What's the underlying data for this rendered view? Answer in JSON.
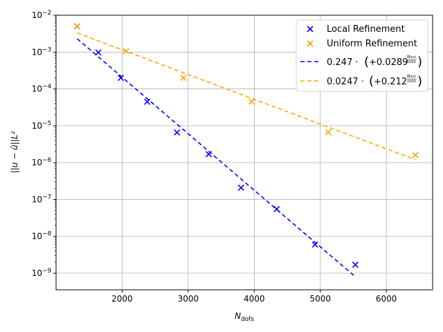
{
  "chart_data": {
    "type": "scatter",
    "title": "",
    "xlabel_main": "N",
    "xlabel_sub": "dofs",
    "ylabel": "||u − ũ||L²",
    "xlim": [
      1000,
      6700
    ],
    "ylim_exp": [
      -9.45,
      -2
    ],
    "yscale": "log",
    "grid": true,
    "legend_position": "top-right",
    "x_ticks": [
      2000,
      3000,
      4000,
      5000,
      6000
    ],
    "y_ticks": [
      {
        "exp": -2,
        "base": "10",
        "sup": "−2"
      },
      {
        "exp": -3,
        "base": "10",
        "sup": "−3"
      },
      {
        "exp": -4,
        "base": "10",
        "sup": "−4"
      },
      {
        "exp": -5,
        "base": "10",
        "sup": "−5"
      },
      {
        "exp": -6,
        "base": "10",
        "sup": "−6"
      },
      {
        "exp": -7,
        "base": "10",
        "sup": "−7"
      },
      {
        "exp": -8,
        "base": "10",
        "sup": "−8"
      },
      {
        "exp": -9,
        "base": "10",
        "sup": "−9"
      }
    ],
    "series": [
      {
        "name": "Local Refinement",
        "kind": "scatter",
        "marker": "x",
        "color": "#0000ff",
        "x": [
          1320,
          1640,
          1980,
          2380,
          2830,
          3310,
          3800,
          4340,
          4920,
          5530
        ],
        "y": [
          0.005,
          0.00098,
          0.0002,
          4.5e-05,
          6.6e-06,
          1.7e-06,
          2.1e-07,
          5.5e-08,
          6e-09,
          1.7e-09
        ]
      },
      {
        "name": "Uniform Refinement",
        "kind": "scatter",
        "marker": "x",
        "color": "#ffa500",
        "x": [
          1320,
          2060,
          2930,
          3960,
          5120,
          6440
        ],
        "y": [
          0.005,
          0.00105,
          0.0002,
          4.5e-05,
          6.7e-06,
          1.6e-06
        ]
      },
      {
        "name": "0.247 · (+0.0289^(N_dofs/1000))",
        "kind": "fit",
        "color": "#0000ff",
        "dash": "6,4",
        "x": [
          1320,
          5530
        ],
        "y": [
          0.0023,
          8e-10
        ]
      },
      {
        "name": "0.0247 · (+0.212^(N_dofs/1000))",
        "kind": "fit",
        "color": "#ffa500",
        "dash": "6,4",
        "x": [
          1320,
          6440
        ],
        "y": [
          0.0033,
          1.2e-06
        ]
      }
    ],
    "legend": {
      "local": "Local Refinement",
      "uniform": "Uniform Refinement",
      "fit1_coef": "0.247 · ",
      "fit1_base": "+0.0289",
      "fit2_coef": "0.0247 · ",
      "fit2_base": "+0.212",
      "frac_num_main": "N",
      "frac_num_sub": "dofs",
      "frac_den": "1000"
    }
  }
}
